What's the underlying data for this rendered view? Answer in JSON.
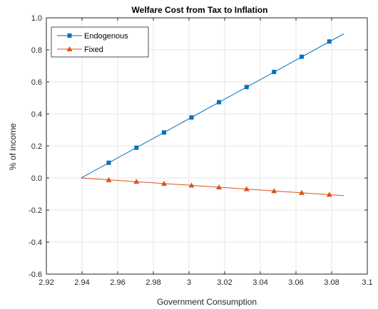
{
  "colors": {
    "endogenous": "#0072BD",
    "fixed": "#D95319",
    "grid": "#e6e6e6",
    "axis": "#262626"
  },
  "chart_data": {
    "type": "line",
    "title": "Welfare Cost from Tax to Inflation",
    "xlabel": "Government Consumption",
    "ylabel": "% of income",
    "xlim": [
      2.92,
      3.1
    ],
    "ylim": [
      -0.6,
      1.0
    ],
    "xticks": [
      2.92,
      2.94,
      2.96,
      2.98,
      3.0,
      3.02,
      3.04,
      3.06,
      3.08,
      3.1
    ],
    "xtick_labels": [
      "2.92",
      "2.94",
      "2.96",
      "2.98",
      "3",
      "3.02",
      "3.04",
      "3.06",
      "3.08",
      "3.1"
    ],
    "yticks": [
      -0.6,
      -0.4,
      -0.2,
      0.0,
      0.2,
      0.4,
      0.6,
      0.8,
      1.0
    ],
    "ytick_labels": [
      "-0.6",
      "-0.4",
      "-0.2",
      "0.0",
      "0.2",
      "0.4",
      "0.6",
      "0.8",
      "1.0"
    ],
    "grid": true,
    "legend_position": "top-left",
    "series": [
      {
        "name": "Endogenous",
        "marker": "square",
        "line": {
          "x": [
            2.9395,
            3.0868
          ],
          "y": [
            0.0,
            0.9
          ]
        },
        "points": {
          "x": [
            2.955,
            2.9705,
            2.986,
            3.0014,
            3.0168,
            3.0323,
            3.0477,
            3.0632,
            3.0787
          ],
          "y": [
            0.095,
            0.189,
            0.284,
            0.378,
            0.473,
            0.568,
            0.662,
            0.757,
            0.852
          ]
        }
      },
      {
        "name": "Fixed",
        "marker": "triangle",
        "line": {
          "x": [
            2.9395,
            3.0868
          ],
          "y": [
            0.0,
            -0.11
          ]
        },
        "points": {
          "x": [
            2.955,
            2.9705,
            2.986,
            3.0014,
            3.0168,
            3.0323,
            3.0477,
            3.0632,
            3.0787
          ],
          "y": [
            -0.012,
            -0.023,
            -0.035,
            -0.046,
            -0.058,
            -0.069,
            -0.081,
            -0.092,
            -0.104
          ]
        }
      }
    ]
  }
}
